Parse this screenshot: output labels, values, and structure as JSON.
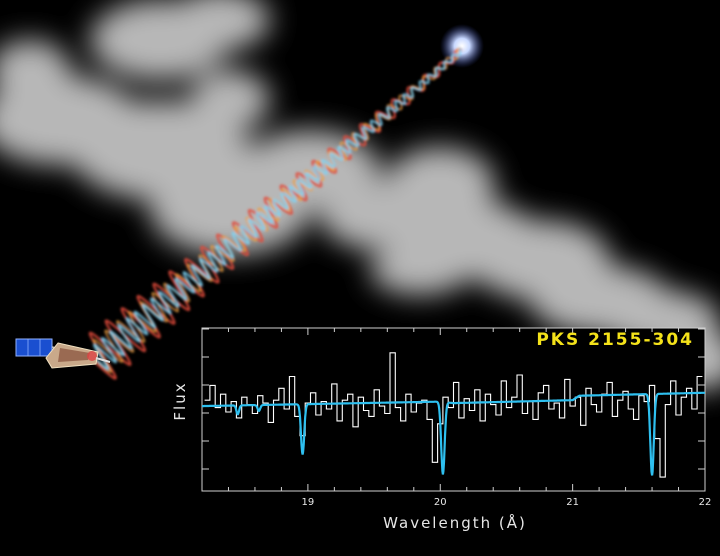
{
  "chart_data": {
    "type": "line",
    "title": "PKS 2155-304",
    "xlabel": "Wavelength (Å)",
    "ylabel": "Flux",
    "xlim": [
      18.2,
      22.0
    ],
    "x_ticks": [
      19,
      20,
      21,
      22
    ],
    "y_ticks_count": 6,
    "ylim": [
      0,
      1
    ],
    "grid": false,
    "legend": "none",
    "colors": {
      "data": "#ffffff",
      "model": "#2ec0f0",
      "title": "#f4e21a"
    },
    "series": [
      {
        "style": "step",
        "x": [
          18.24,
          18.28,
          18.32,
          18.36,
          18.4,
          18.44,
          18.48,
          18.52,
          18.56,
          18.6,
          18.64,
          18.68,
          18.72,
          18.76,
          18.8,
          18.84,
          18.88,
          18.92,
          18.96,
          19.0,
          19.04,
          19.08,
          19.12,
          19.16,
          19.2,
          19.24,
          19.28,
          19.32,
          19.36,
          19.4,
          19.44,
          19.48,
          19.52,
          19.56,
          19.6,
          19.64,
          19.68,
          19.72,
          19.76,
          19.8,
          19.84,
          19.88,
          19.92,
          19.96,
          20.0,
          20.04,
          20.08,
          20.12,
          20.16,
          20.2,
          20.24,
          20.28,
          20.32,
          20.36,
          20.4,
          20.44,
          20.48,
          20.52,
          20.56,
          20.6,
          20.64,
          20.68,
          20.72,
          20.76,
          20.8,
          20.84,
          20.88,
          20.92,
          20.96,
          21.0,
          21.04,
          21.08,
          21.12,
          21.16,
          21.2,
          21.24,
          21.28,
          21.32,
          21.36,
          21.4,
          21.44,
          21.48,
          21.52,
          21.56,
          21.6,
          21.64,
          21.68,
          21.72,
          21.76,
          21.8,
          21.84,
          21.88,
          21.92,
          21.96
        ],
        "values": [
          0.58,
          0.68,
          0.53,
          0.62,
          0.5,
          0.57,
          0.46,
          0.6,
          0.55,
          0.49,
          0.61,
          0.56,
          0.43,
          0.58,
          0.66,
          0.52,
          0.74,
          0.47,
          0.34,
          0.56,
          0.63,
          0.48,
          0.57,
          0.52,
          0.69,
          0.44,
          0.58,
          0.62,
          0.4,
          0.6,
          0.51,
          0.47,
          0.65,
          0.54,
          0.49,
          0.9,
          0.53,
          0.44,
          0.62,
          0.5,
          0.56,
          0.58,
          0.45,
          0.16,
          0.42,
          0.6,
          0.53,
          0.7,
          0.46,
          0.59,
          0.51,
          0.65,
          0.44,
          0.62,
          0.55,
          0.48,
          0.71,
          0.53,
          0.6,
          0.75,
          0.49,
          0.57,
          0.45,
          0.63,
          0.68,
          0.52,
          0.56,
          0.46,
          0.72,
          0.54,
          0.6,
          0.41,
          0.66,
          0.55,
          0.5,
          0.62,
          0.7,
          0.47,
          0.58,
          0.64,
          0.52,
          0.45,
          0.61,
          0.57,
          0.68,
          0.32,
          0.06,
          0.55,
          0.71,
          0.48,
          0.6,
          0.66,
          0.52,
          0.74
        ]
      },
      {
        "style": "model",
        "continuum": [
          [
            18.2,
            0.54
          ],
          [
            20.0,
            0.57
          ],
          [
            20.1,
            0.56
          ],
          [
            21.0,
            0.58
          ],
          [
            21.05,
            0.61
          ],
          [
            22.0,
            0.63
          ]
        ],
        "absorption_lines": [
          {
            "center": 18.96,
            "depth": 0.34,
            "width": 0.012
          },
          {
            "center": 20.02,
            "depth": 0.49,
            "width": 0.013
          },
          {
            "center": 21.6,
            "depth": 0.55,
            "width": 0.013
          },
          {
            "center": 18.47,
            "depth": 0.06,
            "width": 0.01
          },
          {
            "center": 18.63,
            "depth": 0.04,
            "width": 0.01
          }
        ]
      }
    ]
  }
}
